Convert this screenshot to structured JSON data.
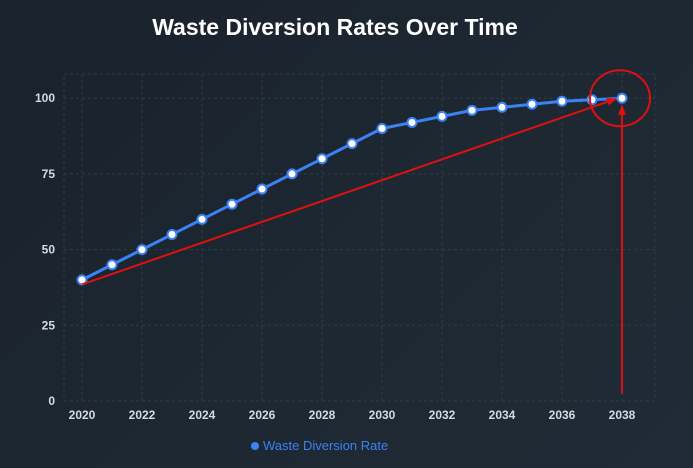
{
  "chart_data": {
    "type": "line",
    "title": "Waste Diversion Rates Over Time",
    "xlabel": "",
    "ylabel": "",
    "x": [
      2020,
      2021,
      2022,
      2023,
      2024,
      2025,
      2026,
      2027,
      2028,
      2029,
      2030,
      2031,
      2032,
      2033,
      2034,
      2035,
      2036,
      2037,
      2038
    ],
    "series": [
      {
        "name": "Waste Diversion Rate",
        "values": [
          40,
          45,
          50,
          55,
          60,
          65,
          70,
          75,
          80,
          85,
          90,
          92,
          94,
          96,
          97,
          98,
          99,
          99.5,
          100
        ],
        "color": "#3b82f6"
      }
    ],
    "xticks": [
      2020,
      2022,
      2024,
      2026,
      2028,
      2030,
      2032,
      2034,
      2036,
      2038
    ],
    "yticks": [
      0,
      25,
      50,
      75,
      100
    ],
    "xlim": [
      2019.4,
      2039.1
    ],
    "ylim": [
      0,
      108
    ],
    "grid": true,
    "legend_position": "bottom",
    "annotations": [
      {
        "type": "arrow",
        "from": [
          2020,
          38.5
        ],
        "to": [
          2037.8,
          99.8
        ],
        "color": "#e01010"
      },
      {
        "type": "arrow",
        "from": [
          2038,
          2.5
        ],
        "to": [
          2038,
          97.5
        ],
        "color": "#e01010"
      },
      {
        "type": "circle",
        "center": [
          2038,
          100
        ],
        "color": "#e01010"
      }
    ]
  }
}
